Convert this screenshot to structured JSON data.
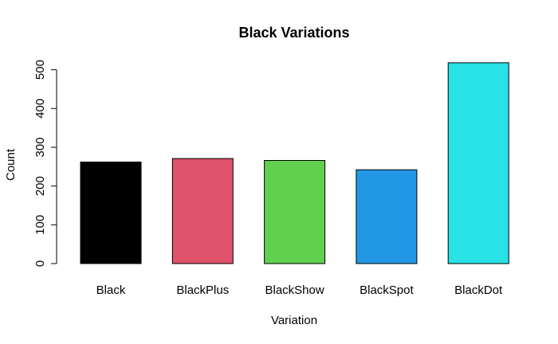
{
  "chart_data": {
    "type": "bar",
    "title": "Black Variations",
    "xlabel": "Variation",
    "ylabel": "Count",
    "categories": [
      "Black",
      "BlackPlus",
      "BlackShow",
      "BlackSpot",
      "BlackDot"
    ],
    "values": [
      262,
      271,
      266,
      242,
      518
    ],
    "colors": [
      "#000000",
      "#DF536B",
      "#61D04F",
      "#2297E6",
      "#28E2E5"
    ],
    "yticks": [
      0,
      100,
      200,
      300,
      400,
      500
    ],
    "ylim": [
      0,
      518
    ],
    "grid": false,
    "legend": "none"
  }
}
